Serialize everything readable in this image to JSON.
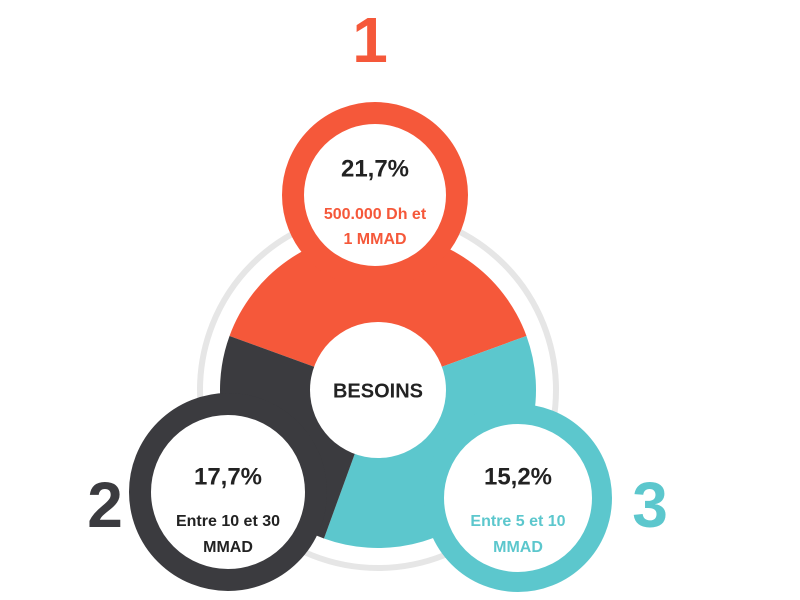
{
  "center": {
    "label": "BESOINS"
  },
  "items": [
    {
      "number": "1",
      "percent": "21,7%",
      "label_lines": [
        "500.000 Dh et",
        "1 MMAD"
      ]
    },
    {
      "number": "2",
      "percent": "17,7%",
      "label_lines": [
        "Entre 10 et 30",
        "MMAD"
      ]
    },
    {
      "number": "3",
      "percent": "15,2%",
      "label_lines": [
        "Entre 5 et 10",
        "MMAD"
      ]
    }
  ]
}
